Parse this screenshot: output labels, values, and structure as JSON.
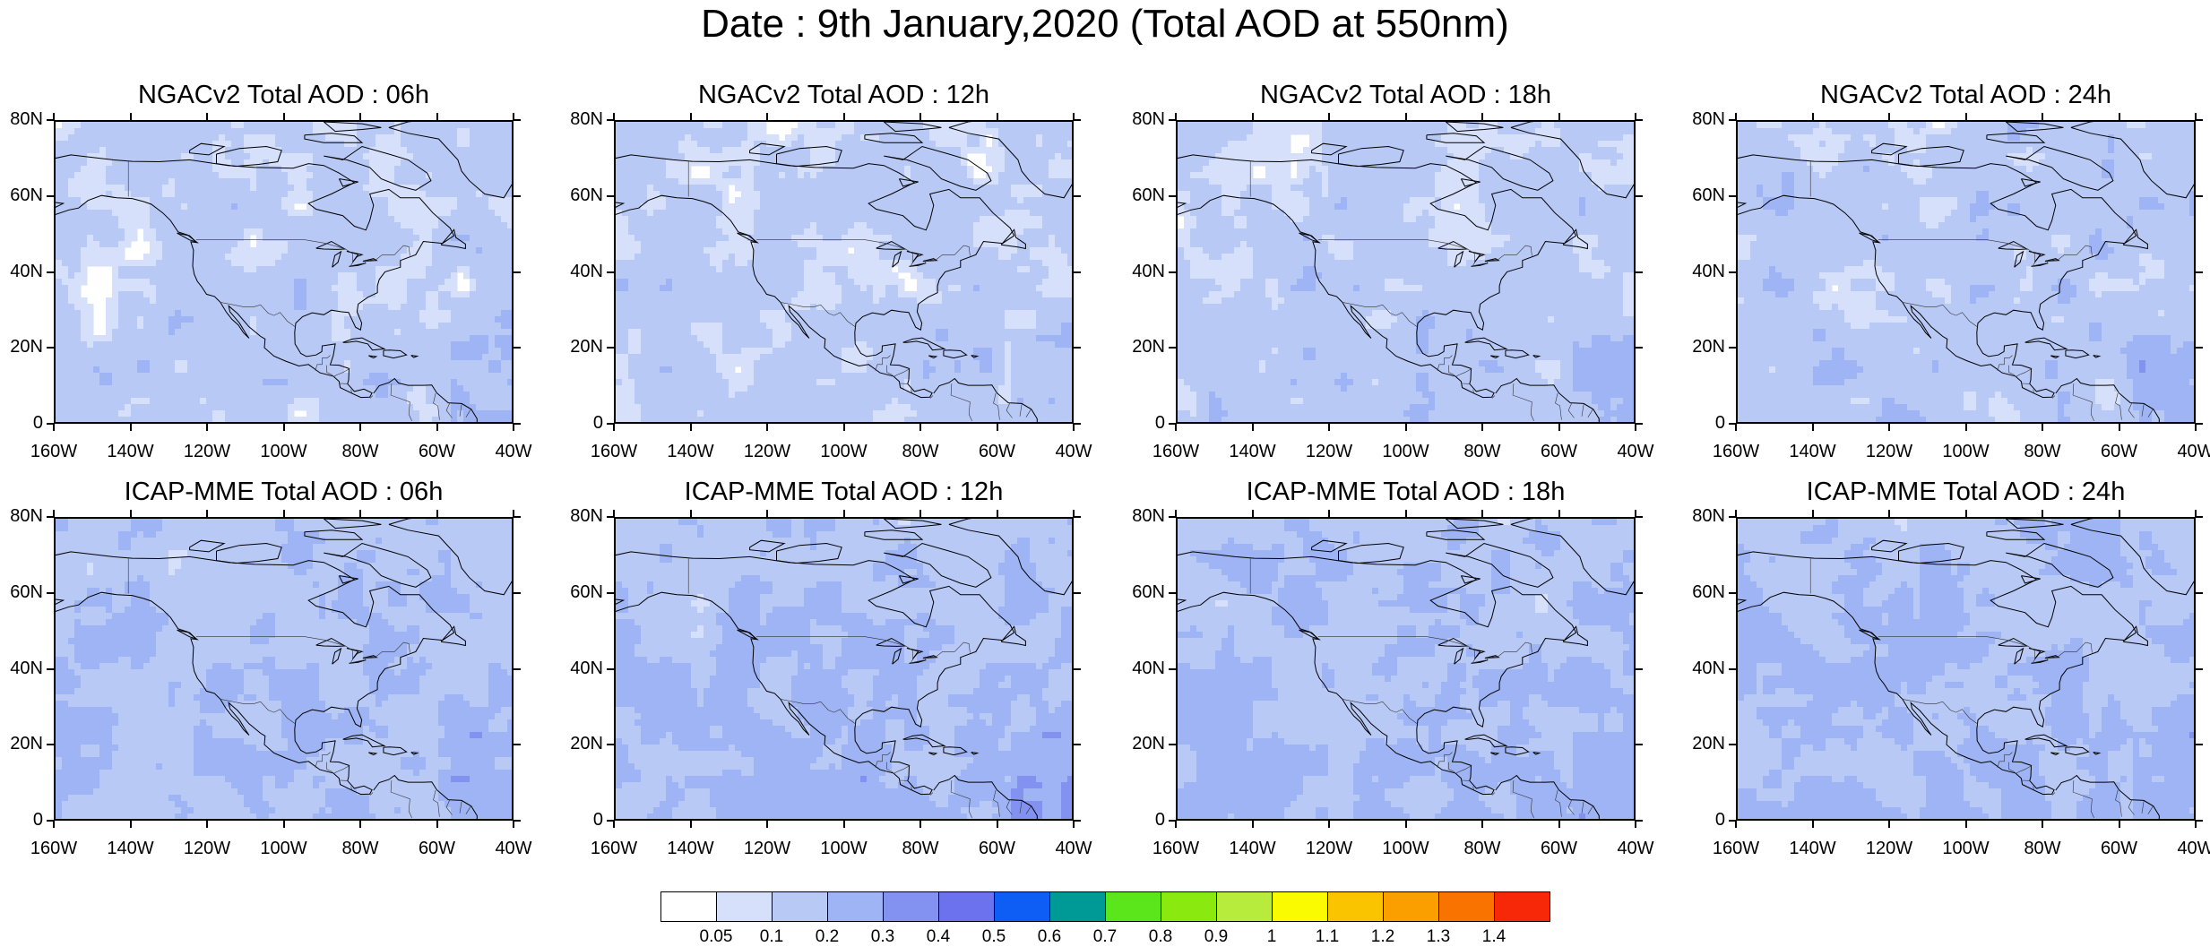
{
  "title": "Date : 9th January,2020 (Total AOD at 550nm)",
  "panels": [
    {
      "title": "NGACv2 Total AOD : 06h",
      "model": "NGACv2",
      "hour": "06h",
      "mean_level": 0.11
    },
    {
      "title": "NGACv2 Total AOD : 12h",
      "model": "NGACv2",
      "hour": "12h",
      "mean_level": 0.11
    },
    {
      "title": "NGACv2 Total AOD : 18h",
      "model": "NGACv2",
      "hour": "18h",
      "mean_level": 0.12
    },
    {
      "title": "NGACv2 Total AOD : 24h",
      "model": "NGACv2",
      "hour": "24h",
      "mean_level": 0.13
    },
    {
      "title": "ICAP-MME Total AOD : 06h",
      "model": "ICAP-MME",
      "hour": "06h",
      "mean_level": 0.17
    },
    {
      "title": "ICAP-MME Total AOD : 12h",
      "model": "ICAP-MME",
      "hour": "12h",
      "mean_level": 0.18
    },
    {
      "title": "ICAP-MME Total AOD : 18h",
      "model": "ICAP-MME",
      "hour": "18h",
      "mean_level": 0.18
    },
    {
      "title": "ICAP-MME Total AOD : 24h",
      "model": "ICAP-MME",
      "hour": "24h",
      "mean_level": 0.18
    }
  ],
  "lat_labels": [
    "80N",
    "60N",
    "40N",
    "20N",
    "0"
  ],
  "lon_labels": [
    "160W",
    "140W",
    "120W",
    "100W",
    "80W",
    "60W",
    "40W"
  ],
  "colorbar": {
    "labels": [
      "0.05",
      "0.1",
      "0.2",
      "0.3",
      "0.4",
      "0.5",
      "0.6",
      "0.7",
      "0.8",
      "0.9",
      "1",
      "1.1",
      "1.2",
      "1.3",
      "1.4"
    ],
    "colors": [
      "#ffffff",
      "#d6e0fa",
      "#b9c9f6",
      "#9eb4f4",
      "#8392f0",
      "#6c72ee",
      "#0e5ef5",
      "#009a96",
      "#5ae61a",
      "#8ae90e",
      "#b8ec3c",
      "#fafa00",
      "#fbc400",
      "#fb9f00",
      "#f97300",
      "#f62808"
    ]
  }
}
